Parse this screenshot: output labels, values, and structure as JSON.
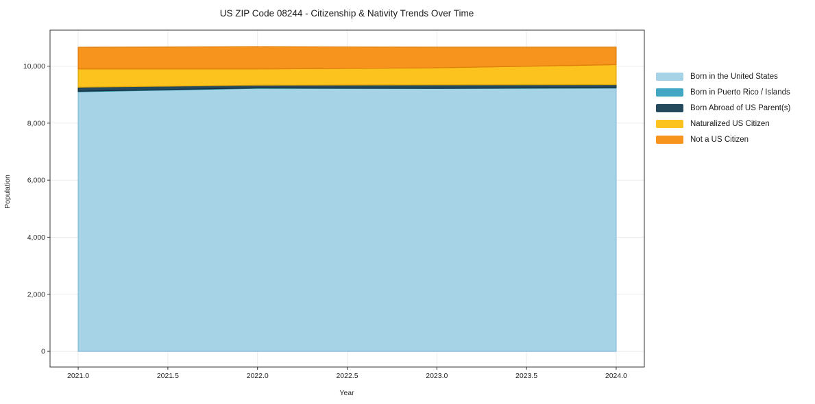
{
  "title": "US ZIP Code 08244 - Citizenship & Nativity Trends Over Time",
  "axes": {
    "x_label": "Year",
    "y_label": "Population",
    "x_ticks": {
      "values": [
        2021.0,
        2021.5,
        2022.0,
        2022.5,
        2023.0,
        2023.5,
        2024.0
      ],
      "labels": [
        "2021.0",
        "2021.5",
        "2022.0",
        "2022.5",
        "2023.0",
        "2023.5",
        "2024.0"
      ]
    },
    "y_ticks": {
      "values": [
        0,
        2000,
        4000,
        6000,
        8000,
        10000
      ],
      "labels": [
        "0",
        "2,000",
        "4,000",
        "6,000",
        "8,000",
        "10,000"
      ]
    }
  },
  "chart_data": {
    "type": "area",
    "stacked": true,
    "title": "US ZIP Code 08244 - Citizenship & Nativity Trends Over Time",
    "xlabel": "Year",
    "ylabel": "Population",
    "x": [
      2021,
      2022,
      2023,
      2024
    ],
    "series": [
      {
        "name": "Born in the United States",
        "color": "#A6D3E6",
        "edge": "#84BEDA",
        "values": [
          9100,
          9220,
          9210,
          9230
        ]
      },
      {
        "name": "Born in Puerto Rico / Islands",
        "color": "#41A6C2",
        "edge": "#2E86A0",
        "values": [
          20,
          15,
          15,
          15
        ]
      },
      {
        "name": "Born Abroad of US Parent(s)",
        "color": "#254A5E",
        "edge": "#16303F",
        "values": [
          140,
          95,
          120,
          105
        ]
      },
      {
        "name": "Naturalized US Citizen",
        "color": "#FCC31F",
        "edge": "#E0A70B",
        "values": [
          640,
          570,
          595,
          700
        ]
      },
      {
        "name": "Not a US Citizen",
        "color": "#F7941E",
        "edge": "#DE7E0C",
        "values": [
          760,
          780,
          725,
          615
        ]
      }
    ],
    "xlim": [
      2020.843,
      2024.157
    ],
    "ylim": [
      -550,
      11260
    ],
    "grid": true,
    "legend_position": "right"
  },
  "colors": {
    "background": "#ffffff",
    "grid": "#ebebeb",
    "spine": "#333333",
    "tick": "#333333",
    "text": "#262626"
  }
}
